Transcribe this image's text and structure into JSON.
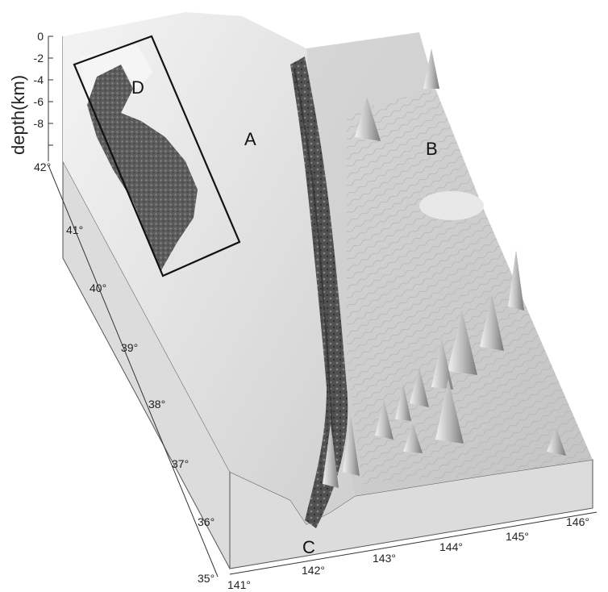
{
  "figure": {
    "depth_axis": {
      "title": "depth(km)",
      "ticks": [
        "0",
        "-2",
        "-4",
        "-6",
        "-8"
      ]
    },
    "latitude_axis": {
      "ticks": [
        "42°",
        "41°",
        "40°",
        "39°",
        "38°",
        "37°",
        "36°",
        "35°"
      ]
    },
    "longitude_axis": {
      "ticks": [
        "141°",
        "142°",
        "143°",
        "144°",
        "145°",
        "146°"
      ]
    },
    "regions": {
      "a": "A",
      "b": "B",
      "c": "C",
      "d": "D"
    },
    "colors": {
      "side_face": "#dcdcdc",
      "sea_floor": "#c8c8c8",
      "land_dark": "#5a5a5a",
      "trench": "#3a3a3a"
    }
  }
}
